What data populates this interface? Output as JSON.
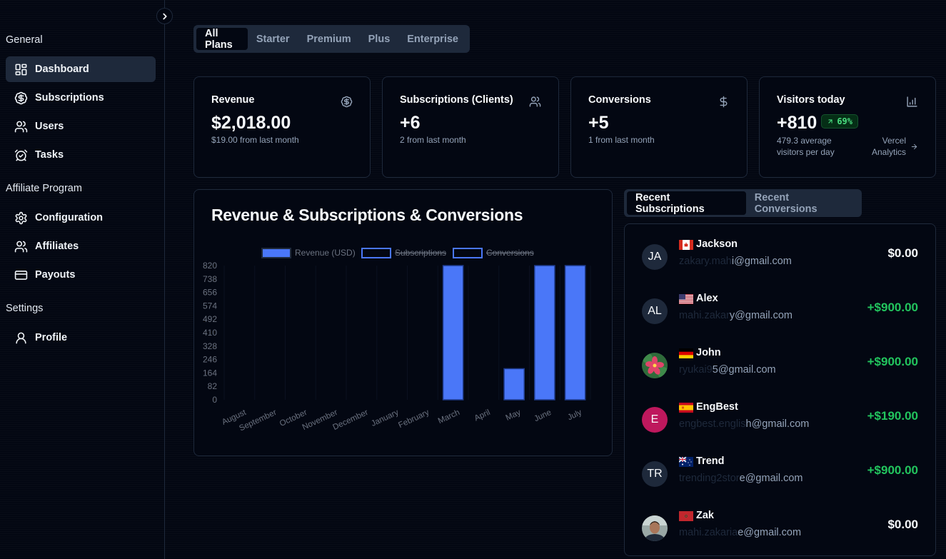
{
  "sidebar": {
    "sections": [
      {
        "title": "General",
        "items": [
          {
            "label": "Dashboard",
            "icon": "dashboard-icon",
            "active": true
          },
          {
            "label": "Subscriptions",
            "icon": "badge-dollar-icon"
          },
          {
            "label": "Users",
            "icon": "users-icon"
          },
          {
            "label": "Tasks",
            "icon": "alarm-clock-check-icon"
          }
        ]
      },
      {
        "title": "Affiliate Program",
        "items": [
          {
            "label": "Configuration",
            "icon": "gear-icon"
          },
          {
            "label": "Affiliates",
            "icon": "users-icon"
          },
          {
            "label": "Payouts",
            "icon": "credit-card-icon"
          }
        ]
      },
      {
        "title": "Settings",
        "items": [
          {
            "label": "Profile",
            "icon": "user-icon"
          }
        ]
      }
    ]
  },
  "plan_tabs": [
    "All Plans",
    "Starter",
    "Premium",
    "Plus",
    "Enterprise"
  ],
  "active_plan_tab": "All Plans",
  "stats": [
    {
      "title": "Revenue",
      "value": "$2,018.00",
      "sub": "$19.00 from last month",
      "icon": "badge-dollar-icon"
    },
    {
      "title": "Subscriptions (Clients)",
      "value": "+6",
      "sub": "2 from last month",
      "icon": "users-icon"
    },
    {
      "title": "Conversions",
      "value": "+5",
      "sub": "1 from last month",
      "icon": "dollar-sign-icon"
    },
    {
      "title": "Visitors today",
      "value": "+810",
      "badge": "69%",
      "sub_line1": "479.3 average",
      "sub_line2": "visitors per day",
      "link_line1": "Vercel",
      "link_line2": "Analytics",
      "icon": "bar-chart-icon"
    }
  ],
  "chart_data": {
    "type": "bar",
    "title": "Revenue & Subscriptions & Conversions",
    "categories": [
      "August",
      "September",
      "October",
      "November",
      "December",
      "January",
      "February",
      "March",
      "April",
      "May",
      "June",
      "July"
    ],
    "series": [
      {
        "name": "Revenue (USD)",
        "hidden": false,
        "values": [
          0,
          0,
          0,
          0,
          0,
          0,
          0,
          900,
          0,
          190,
          900,
          900
        ]
      },
      {
        "name": "Subscriptions",
        "hidden": true,
        "values": []
      },
      {
        "name": "Conversions",
        "hidden": true,
        "values": []
      }
    ],
    "yticks": [
      0,
      82,
      164,
      246,
      328,
      410,
      492,
      574,
      656,
      738,
      820
    ],
    "ylim": [
      0,
      820
    ],
    "xlabel": "",
    "ylabel": "",
    "legend_position": "top",
    "colors": {
      "bar": "#4a77f8",
      "border": "#3b5bdb"
    }
  },
  "recent_tabs": [
    "Recent Subscriptions",
    "Recent Conversions"
  ],
  "active_recent_tab": "Recent Subscriptions",
  "subscriptions": [
    {
      "initials": "JA",
      "name": "Jackson",
      "flag": "ca",
      "email_masked": "zakary.mah",
      "email_visible": "i@gmail.com",
      "amount": "$0.00",
      "positive": false
    },
    {
      "initials": "AL",
      "name": "Alex",
      "flag": "us",
      "email_masked": "mahi.zakar",
      "email_visible": "y@gmail.com",
      "amount": "+$900.00",
      "positive": true
    },
    {
      "initials": "",
      "avatar": "flower",
      "name": "John",
      "flag": "de",
      "email_masked": "ryukai9",
      "email_visible": "5@gmail.com",
      "amount": "+$900.00",
      "positive": true
    },
    {
      "initials": "E",
      "avatar_color": "#be185d",
      "name": "EngBest",
      "flag": "es",
      "email_masked": "engbest.englis",
      "email_visible": "h@gmail.com",
      "amount": "+$190.00",
      "positive": true
    },
    {
      "initials": "TR",
      "name": "Trend",
      "flag": "au",
      "email_masked": "trending2stor",
      "email_visible": "e@gmail.com",
      "amount": "+$900.00",
      "positive": true
    },
    {
      "initials": "",
      "avatar": "photo",
      "name": "Zak",
      "flag": "ma",
      "email_masked": "mahi.zakaria",
      "email_visible": "e@gmail.com",
      "amount": "$0.00",
      "positive": false
    }
  ]
}
